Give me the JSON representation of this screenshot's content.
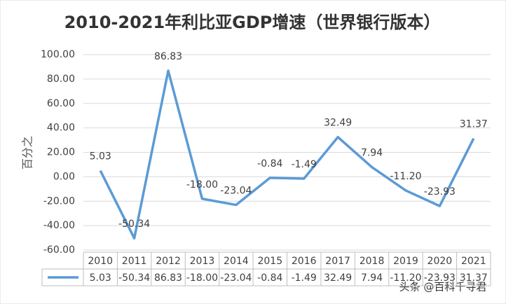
{
  "chart_data": {
    "type": "line",
    "title": "2010-2021年利比亚GDP增速（世界银行版本）",
    "y_label": "百分之",
    "categories": [
      "2010",
      "2011",
      "2012",
      "2013",
      "2014",
      "2015",
      "2016",
      "2017",
      "2018",
      "2019",
      "2020",
      "2021"
    ],
    "values": [
      5.03,
      -50.34,
      86.83,
      -18,
      -23.04,
      -0.84,
      -1.49,
      32.49,
      7.94,
      -11.2,
      -23.93,
      31.37
    ],
    "value_labels": [
      "5.03",
      "-50.34",
      "86.83",
      "-18.00",
      "-23.04",
      "-0.84",
      "-1.49",
      "32.49",
      "7.94",
      "-11.20",
      "-23.93",
      "31.37"
    ],
    "color": "#5b9bd5",
    "ylim": [
      -60,
      100
    ],
    "yticks": [
      {
        "value": -60,
        "label": "-60.00"
      },
      {
        "value": -40,
        "label": "-40.00"
      },
      {
        "value": -20,
        "label": "-20.00"
      },
      {
        "value": 0,
        "label": "0.00"
      },
      {
        "value": 20,
        "label": "20.00"
      },
      {
        "value": 40,
        "label": "40.00"
      },
      {
        "value": 60,
        "label": "60.00"
      },
      {
        "value": 80,
        "label": "80.00"
      },
      {
        "value": 100,
        "label": "100.00"
      }
    ],
    "grid": true,
    "data_table": true,
    "watermark": "头条 @百科千寻君"
  }
}
